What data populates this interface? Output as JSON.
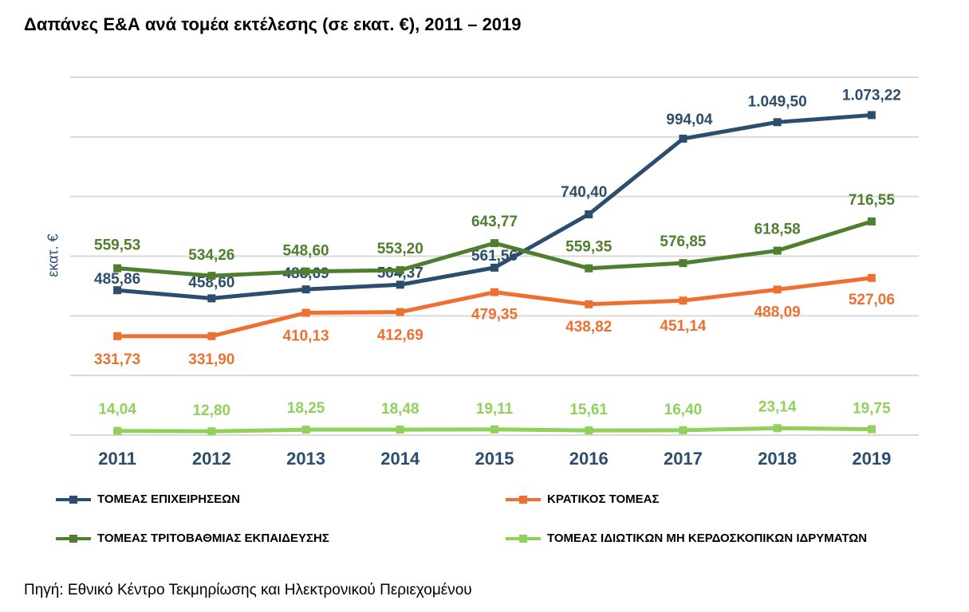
{
  "title": "Δαπάνες Ε&Α ανά τομέα εκτέλεσης (σε εκατ. €), 2011 – 2019",
  "source": "Πηγή: Εθνικό Κέντρο Τεκμηρίωσης και Ηλεκτρονικού Περιεχομένου",
  "chart_data": {
    "type": "line",
    "ylabel": "εκατ. €",
    "xlabel": "",
    "categories": [
      "2011",
      "2012",
      "2013",
      "2014",
      "2015",
      "2016",
      "2017",
      "2018",
      "2019"
    ],
    "ylim": [
      0,
      1200
    ],
    "grid": true,
    "legend_position": "bottom",
    "series": [
      {
        "name": "ΤΟΜΕΑΣ ΕΠΙΧΕΙΡΗΣΕΩΝ",
        "color": "#2b4d6e",
        "values": [
          485.86,
          458.6,
          488.69,
          504.37,
          561.56,
          740.4,
          994.04,
          1049.5,
          1073.22
        ],
        "labels": [
          "485,86",
          "458,60",
          "488,69",
          "504,37",
          "561,56",
          "740,40",
          "994,04",
          "1.049,50",
          "1.073,22"
        ]
      },
      {
        "name": "ΚΡΑΤΙΚΟΣ ΤΟΜΕΑΣ",
        "color": "#ed7031",
        "values": [
          331.73,
          331.9,
          410.13,
          412.69,
          479.35,
          438.82,
          451.14,
          488.09,
          527.06
        ],
        "labels": [
          "331,73",
          "331,90",
          "410,13",
          "412,69",
          "479,35",
          "438,82",
          "451,14",
          "488,09",
          "527,06"
        ]
      },
      {
        "name": "ΤΟΜΕΑΣ ΤΡΙΤΟΒΑΘΜΙΑΣ ΕΚΠΑΙΔΕΥΣΗΣ",
        "color": "#4f7f2e",
        "values": [
          559.53,
          534.26,
          548.6,
          553.2,
          643.77,
          559.35,
          576.85,
          618.58,
          716.55
        ],
        "labels": [
          "559,53",
          "534,26",
          "548,60",
          "553,20",
          "643,77",
          "559,35",
          "576,85",
          "618,58",
          "716,55"
        ]
      },
      {
        "name": "ΤΟΜΕΑΣ ΙΔΙΩΤΙΚΩΝ ΜΗ ΚΕΡΔΟΣΚΟΠΙΚΩΝ ΙΔΡΥΜΑΤΩΝ",
        "color": "#8fd15a",
        "values": [
          14.04,
          12.8,
          18.25,
          18.48,
          19.11,
          15.61,
          16.4,
          23.14,
          19.75
        ],
        "labels": [
          "14,04",
          "12,80",
          "18,25",
          "18,48",
          "19,11",
          "15,61",
          "16,40",
          "23,14",
          "19,75"
        ]
      }
    ]
  }
}
